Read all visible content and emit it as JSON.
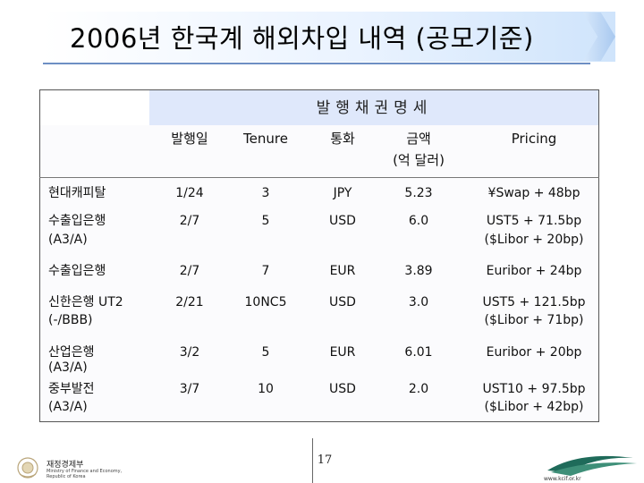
{
  "slide": {
    "title": "2006년 한국계 해외차입 내역 (공모기준)",
    "page_number": "17"
  },
  "table": {
    "group_header": "발행채권명세",
    "columns": [
      {
        "line1": "발행일",
        "line2": ""
      },
      {
        "line1": "Tenure",
        "line2": ""
      },
      {
        "line1": "통화",
        "line2": ""
      },
      {
        "line1": "금액",
        "line2": "(억 달러)"
      },
      {
        "line1": "Pricing",
        "line2": ""
      }
    ],
    "rows": [
      {
        "issuer": "현대캐피탈",
        "rating": "",
        "date": "1/24",
        "tenure": "3",
        "currency": "JPY",
        "amount": "5.23",
        "pricing1": "¥Swap + 48bp",
        "pricing2": ""
      },
      {
        "issuer": "수출입은행",
        "rating": "(A3/A)",
        "date": "2/7",
        "tenure": "5",
        "currency": "USD",
        "amount": "6.0",
        "pricing1": "UST5 + 71.5bp",
        "pricing2": "($Libor + 20bp)"
      },
      {
        "issuer": "수출입은행",
        "rating": "",
        "date": "2/7",
        "tenure": "7",
        "currency": "EUR",
        "amount": "3.89",
        "pricing1": "Euribor + 24bp",
        "pricing2": ""
      },
      {
        "issuer": "신한은행 UT2",
        "rating": "(-/BBB)",
        "date": "2/21",
        "tenure": "10NC5",
        "currency": "USD",
        "amount": "3.0",
        "pricing1": "UST5 + 121.5bp",
        "pricing2": "($Libor + 71bp)"
      },
      {
        "issuer": "산업은행",
        "rating": "(A3/A)",
        "date": "3/2",
        "tenure": "5",
        "currency": "EUR",
        "amount": "6.01",
        "pricing1": "Euribor + 20bp",
        "pricing2": ""
      },
      {
        "issuer": "중부발전",
        "rating": "(A3/A)",
        "date": "3/7",
        "tenure": "10",
        "currency": "USD",
        "amount": "2.0",
        "pricing1": "UST10 + 97.5bp",
        "pricing2": "($Libor + 42bp)"
      }
    ]
  },
  "footer": {
    "org_name_ko": "재정경제부",
    "org_name_en": "Ministry of Finance and Economy, Republic of Korea",
    "logo_icon": "government-emblem-icon",
    "corner_logo_icon": "swoosh-logo-icon",
    "corner_url": "www.kcif.or.kr"
  },
  "colors": {
    "header_fill": "#dfe8fb",
    "title_gradient_end": "#cfe4fb",
    "accent_line": "#6d8fc4"
  }
}
